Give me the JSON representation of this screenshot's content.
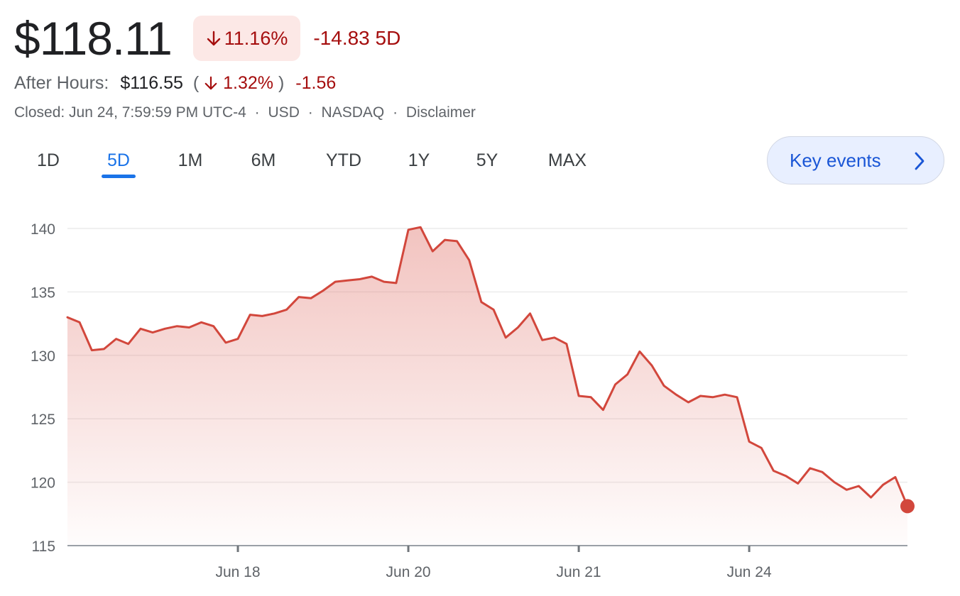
{
  "header": {
    "price": "$118.11",
    "change_pct": "11.16%",
    "change_abs": "-14.83 5D",
    "arrow_icon": "arrow-down-icon"
  },
  "after_hours": {
    "label": "After Hours:",
    "price": "$116.55",
    "paren_open": "(",
    "pct": "1.32%",
    "paren_close": ")",
    "abs": "-1.56"
  },
  "meta": {
    "closed": "Closed: Jun 24, 7:59:59 PM UTC-4",
    "currency": "USD",
    "exchange": "NASDAQ",
    "disclaimer": "Disclaimer",
    "separator": "·"
  },
  "tabs": [
    {
      "label": "1D",
      "active": false
    },
    {
      "label": "5D",
      "active": true
    },
    {
      "label": "1M",
      "active": false
    },
    {
      "label": "6M",
      "active": false
    },
    {
      "label": "YTD",
      "active": false
    },
    {
      "label": "1Y",
      "active": false
    },
    {
      "label": "5Y",
      "active": false
    },
    {
      "label": "MAX",
      "active": false
    }
  ],
  "key_events": {
    "label": "Key events",
    "icon": "chevron-right-icon"
  },
  "colors": {
    "line": "#d2473c",
    "negative": "#a50e0e",
    "accent": "#1a73e8",
    "grid": "#ececec",
    "axis_text": "#5f6368"
  },
  "chart_data": {
    "type": "area",
    "ylim": [
      115,
      140
    ],
    "yticks": [
      "140",
      "135",
      "130",
      "125",
      "120",
      "115"
    ],
    "x_labels": [
      "Jun 18",
      "Jun 20",
      "Jun 21",
      "Jun 24"
    ],
    "grid": true,
    "series": [
      {
        "values": [
          133.0,
          132.6,
          130.4,
          130.5,
          131.3,
          130.9,
          132.1,
          131.8,
          132.1,
          132.3,
          132.2,
          132.6,
          132.3,
          131.0,
          131.3,
          133.2,
          133.1,
          133.3,
          133.6,
          134.6,
          134.5,
          135.1,
          135.8,
          135.9,
          136.0,
          136.2,
          135.8,
          135.7,
          139.9,
          140.1,
          138.2,
          139.1,
          139.0,
          137.5,
          134.2,
          133.6,
          131.4,
          132.2,
          133.3,
          131.2,
          131.4,
          130.9,
          126.8,
          126.7,
          125.7,
          127.7,
          128.5,
          130.3,
          129.2,
          127.6,
          126.9,
          126.3,
          126.8,
          126.7,
          126.9,
          126.7,
          123.2,
          122.7,
          120.9,
          120.5,
          119.9,
          121.1,
          120.8,
          120.0,
          119.4,
          119.7,
          118.8,
          119.8,
          120.4,
          118.11
        ]
      }
    ]
  }
}
